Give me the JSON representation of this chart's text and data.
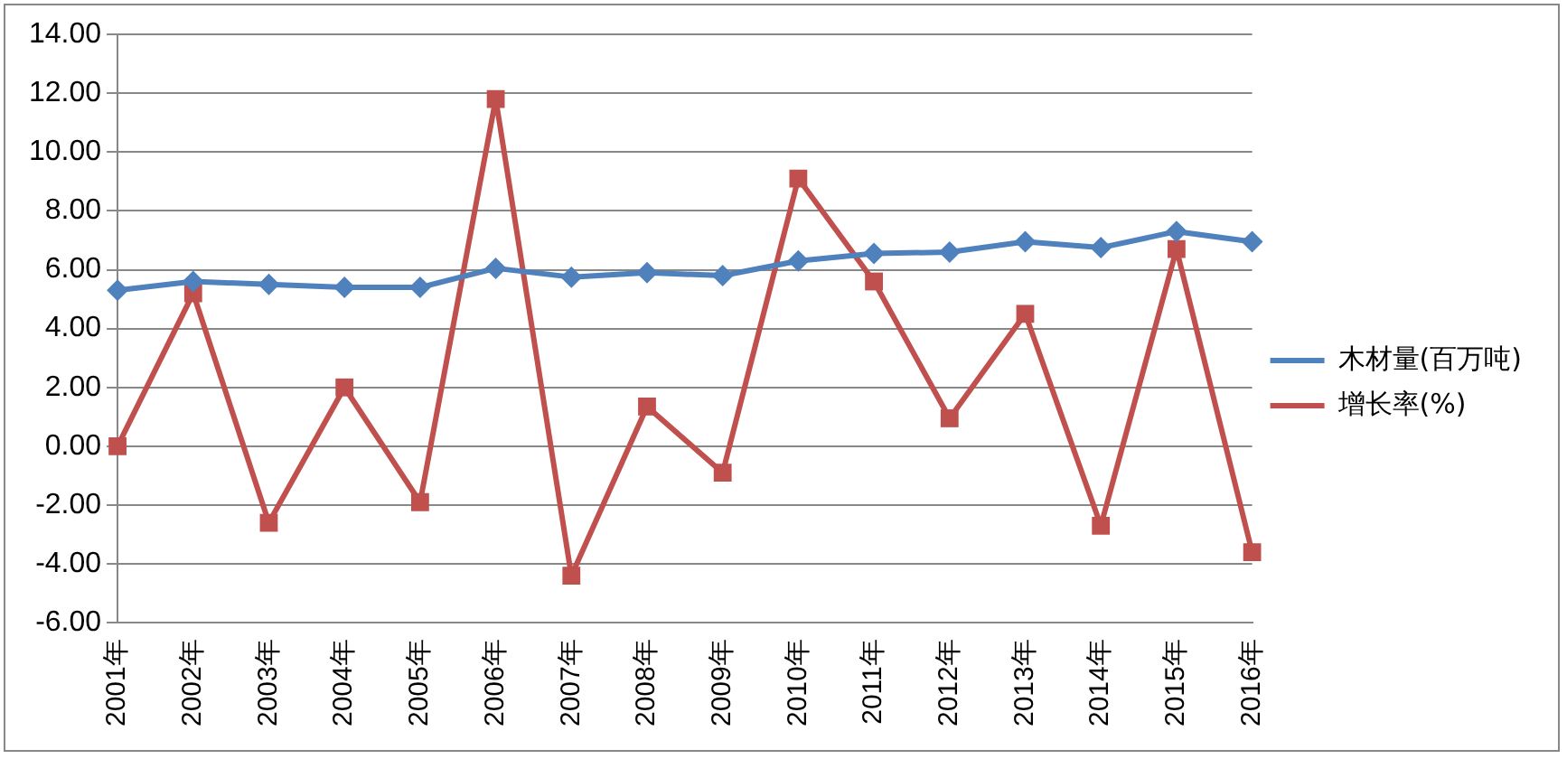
{
  "chart_data": {
    "type": "line",
    "categories": [
      "2001年",
      "2002年",
      "2003年",
      "2004年",
      "2005年",
      "2006年",
      "2007年",
      "2008年",
      "2009年",
      "2010年",
      "2011年",
      "2012年",
      "2013年",
      "2014年",
      "2015年",
      "2016年"
    ],
    "series": [
      {
        "name": "木材量(百万吨)",
        "color": "#4f81bd",
        "marker": "diamond",
        "values": [
          5.3,
          5.6,
          5.5,
          5.4,
          5.4,
          6.05,
          5.75,
          5.9,
          5.8,
          6.3,
          6.55,
          6.6,
          6.95,
          6.75,
          7.3,
          6.95
        ]
      },
      {
        "name": "增长率(%)",
        "color": "#c0504d",
        "marker": "square",
        "values": [
          0,
          5.2,
          -2.6,
          2.0,
          -1.9,
          11.8,
          -4.4,
          1.35,
          -0.9,
          9.1,
          5.6,
          0.95,
          4.5,
          -2.7,
          6.7,
          -3.6
        ]
      }
    ],
    "ylim": [
      -6,
      14
    ],
    "yticks": [
      {
        "value": -6,
        "label": "-6.00"
      },
      {
        "value": -4,
        "label": "-4.00"
      },
      {
        "value": -2,
        "label": "-2.00"
      },
      {
        "value": 0,
        "label": "0.00"
      },
      {
        "value": 2,
        "label": "2.00"
      },
      {
        "value": 4,
        "label": "4.00"
      },
      {
        "value": 6,
        "label": "6.00"
      },
      {
        "value": 8,
        "label": "8.00"
      },
      {
        "value": 10,
        "label": "10.00"
      },
      {
        "value": 12,
        "label": "12.00"
      },
      {
        "value": 14,
        "label": "14.00"
      }
    ],
    "grid": "y",
    "legend": "right"
  }
}
